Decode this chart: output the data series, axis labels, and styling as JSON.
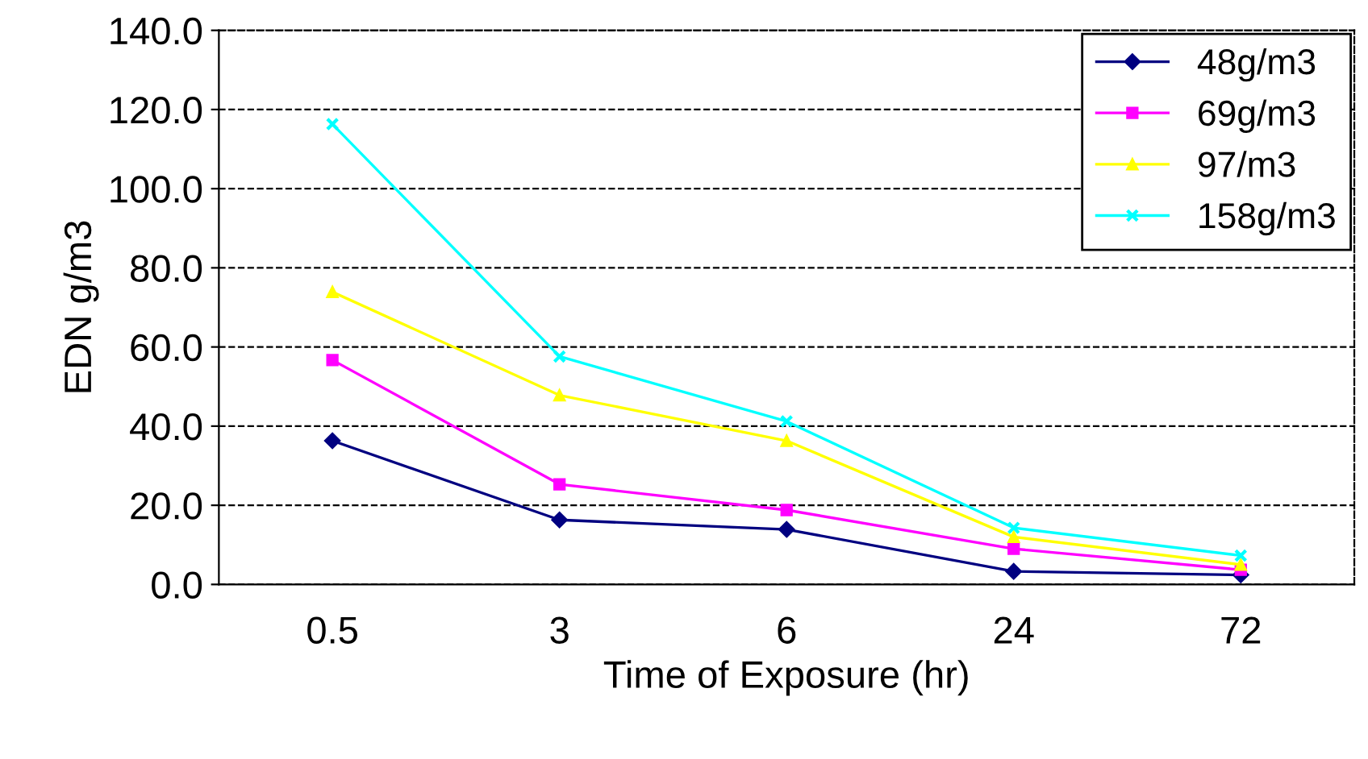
{
  "chart_data": {
    "type": "line",
    "xlabel": "Time of Exposure (hr)",
    "ylabel": "EDN g/m3",
    "categories": [
      "0.5",
      "3",
      "6",
      "24",
      "72"
    ],
    "ylim": [
      0,
      140
    ],
    "yticks": [
      {
        "value": 0,
        "label": "0.0"
      },
      {
        "value": 20,
        "label": "20.0"
      },
      {
        "value": 40,
        "label": "40.0"
      },
      {
        "value": 60,
        "label": "60.0"
      },
      {
        "value": 80,
        "label": "80.0"
      },
      {
        "value": 100,
        "label": "100.0"
      },
      {
        "value": 120,
        "label": "120.0"
      },
      {
        "value": 140,
        "label": "140.0"
      }
    ],
    "grid": "y",
    "legend": "top right",
    "line_style": "solid",
    "series": [
      {
        "name": "48g/m3",
        "color": "#000080",
        "marker": "diamond",
        "values": [
          36.3,
          16.3,
          13.9,
          3.3,
          2.4
        ]
      },
      {
        "name": "69g/m3",
        "color": "#ff00ff",
        "marker": "square",
        "values": [
          56.7,
          25.3,
          18.8,
          9.0,
          3.7
        ]
      },
      {
        "name": "97/m3",
        "color": "#ffff00",
        "marker": "triangle",
        "values": [
          73.9,
          47.8,
          36.3,
          12.0,
          5.0
        ]
      },
      {
        "name": "158g/m3",
        "color": "#00ffff",
        "marker": "cross",
        "values": [
          116.3,
          57.6,
          41.2,
          14.3,
          7.3
        ]
      }
    ]
  }
}
